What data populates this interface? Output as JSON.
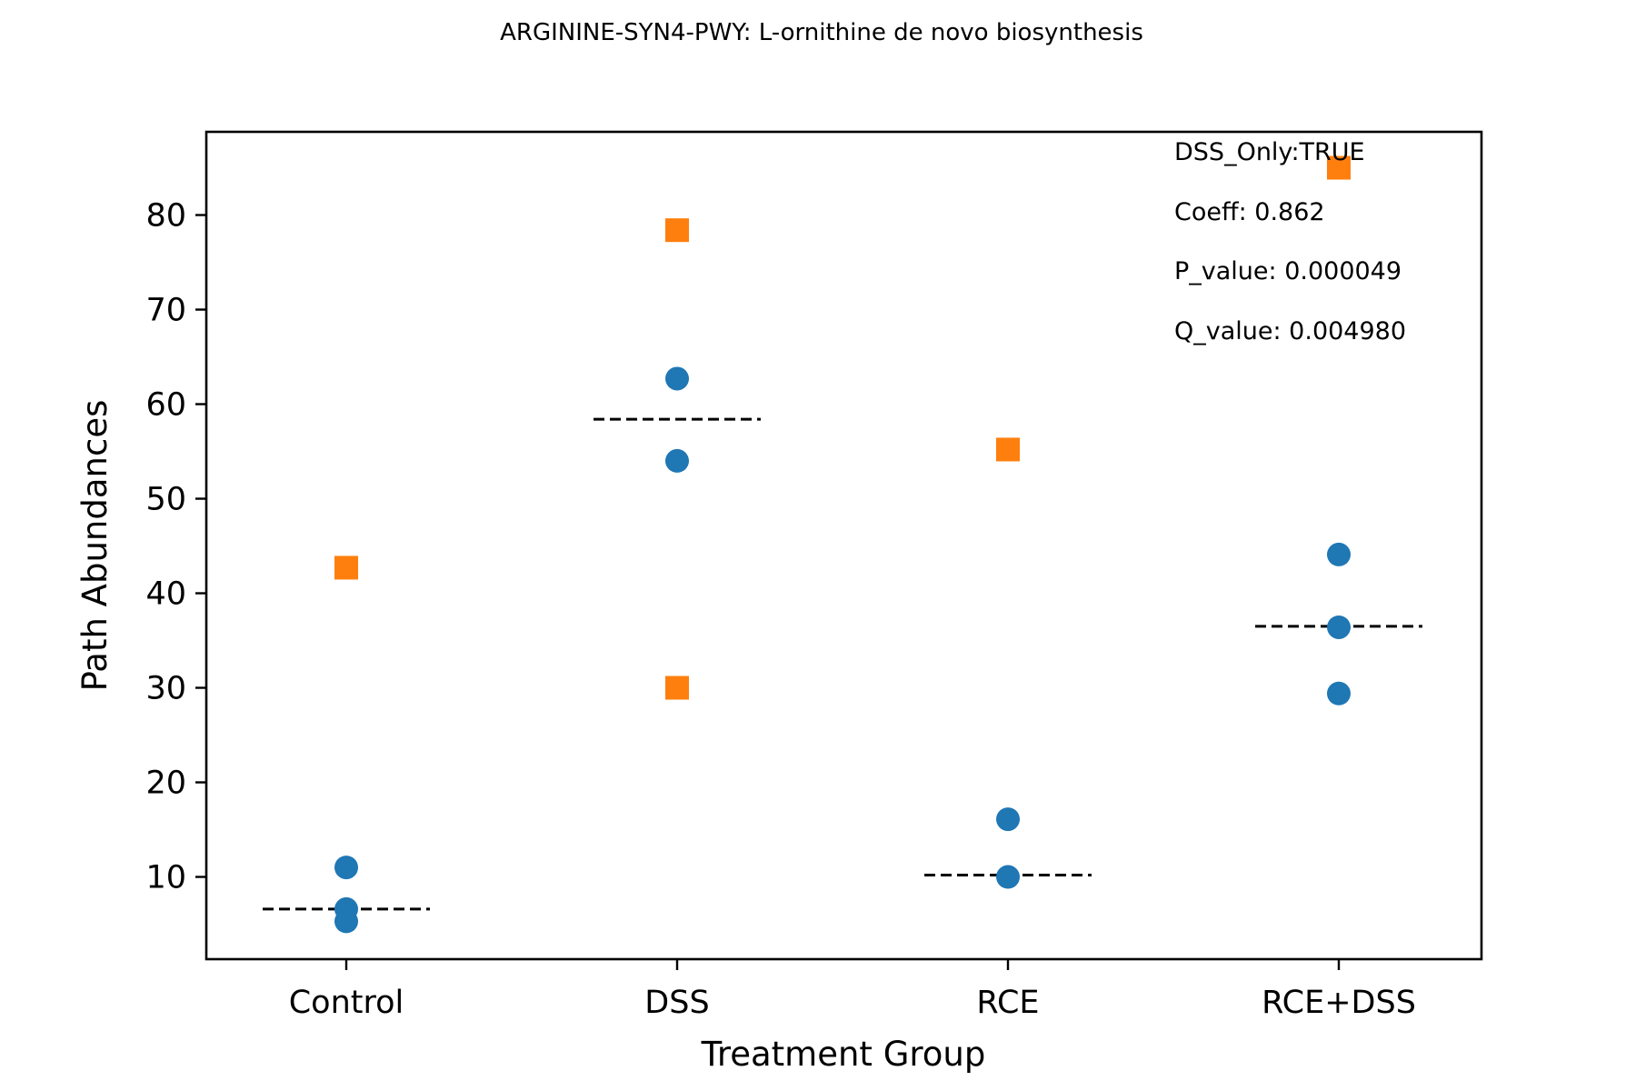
{
  "chart_data": {
    "type": "scatter",
    "title": "ARGININE-SYN4-PWY: L-ornithine de novo  biosynthesis",
    "xlabel": "Treatment Group",
    "ylabel": "Path Abundances",
    "categories": [
      "Control",
      "DSS",
      "RCE",
      "RCE+DSS"
    ],
    "yticks": [
      10,
      20,
      30,
      40,
      50,
      60,
      70,
      80
    ],
    "ylim": [
      1.3,
      88.8
    ],
    "grid": false,
    "series": [
      {
        "marker": "circle",
        "color": "#1f77b4",
        "points": [
          {
            "category": "Control",
            "y": 11.0
          },
          {
            "category": "Control",
            "y": 6.6
          },
          {
            "category": "Control",
            "y": 5.3
          },
          {
            "category": "DSS",
            "y": 62.7
          },
          {
            "category": "DSS",
            "y": 54.0
          },
          {
            "category": "RCE",
            "y": 16.1
          },
          {
            "category": "RCE",
            "y": 10.0
          },
          {
            "category": "RCE+DSS",
            "y": 44.1
          },
          {
            "category": "RCE+DSS",
            "y": 36.4
          },
          {
            "category": "RCE+DSS",
            "y": 29.4
          }
        ]
      },
      {
        "marker": "square",
        "color": "#ff7f0e",
        "points": [
          {
            "category": "Control",
            "y": 42.7
          },
          {
            "category": "DSS",
            "y": 78.4
          },
          {
            "category": "DSS",
            "y": 30.0
          },
          {
            "category": "RCE",
            "y": 55.2
          },
          {
            "category": "RCE+DSS",
            "y": 85.0
          }
        ]
      }
    ],
    "reference_lines": [
      {
        "category": "Control",
        "y": 6.6,
        "style": "dashed",
        "color": "#000000"
      },
      {
        "category": "DSS",
        "y": 58.4,
        "style": "dashed",
        "color": "#000000"
      },
      {
        "category": "RCE",
        "y": 10.2,
        "style": "dashed",
        "color": "#000000"
      },
      {
        "category": "RCE+DSS",
        "y": 36.5,
        "style": "dashed",
        "color": "#000000"
      }
    ],
    "annotations": [
      "DSS_Only:TRUE",
      "Coeff: 0.862",
      "P_value: 0.000049",
      "Q_value: 0.004980"
    ]
  }
}
